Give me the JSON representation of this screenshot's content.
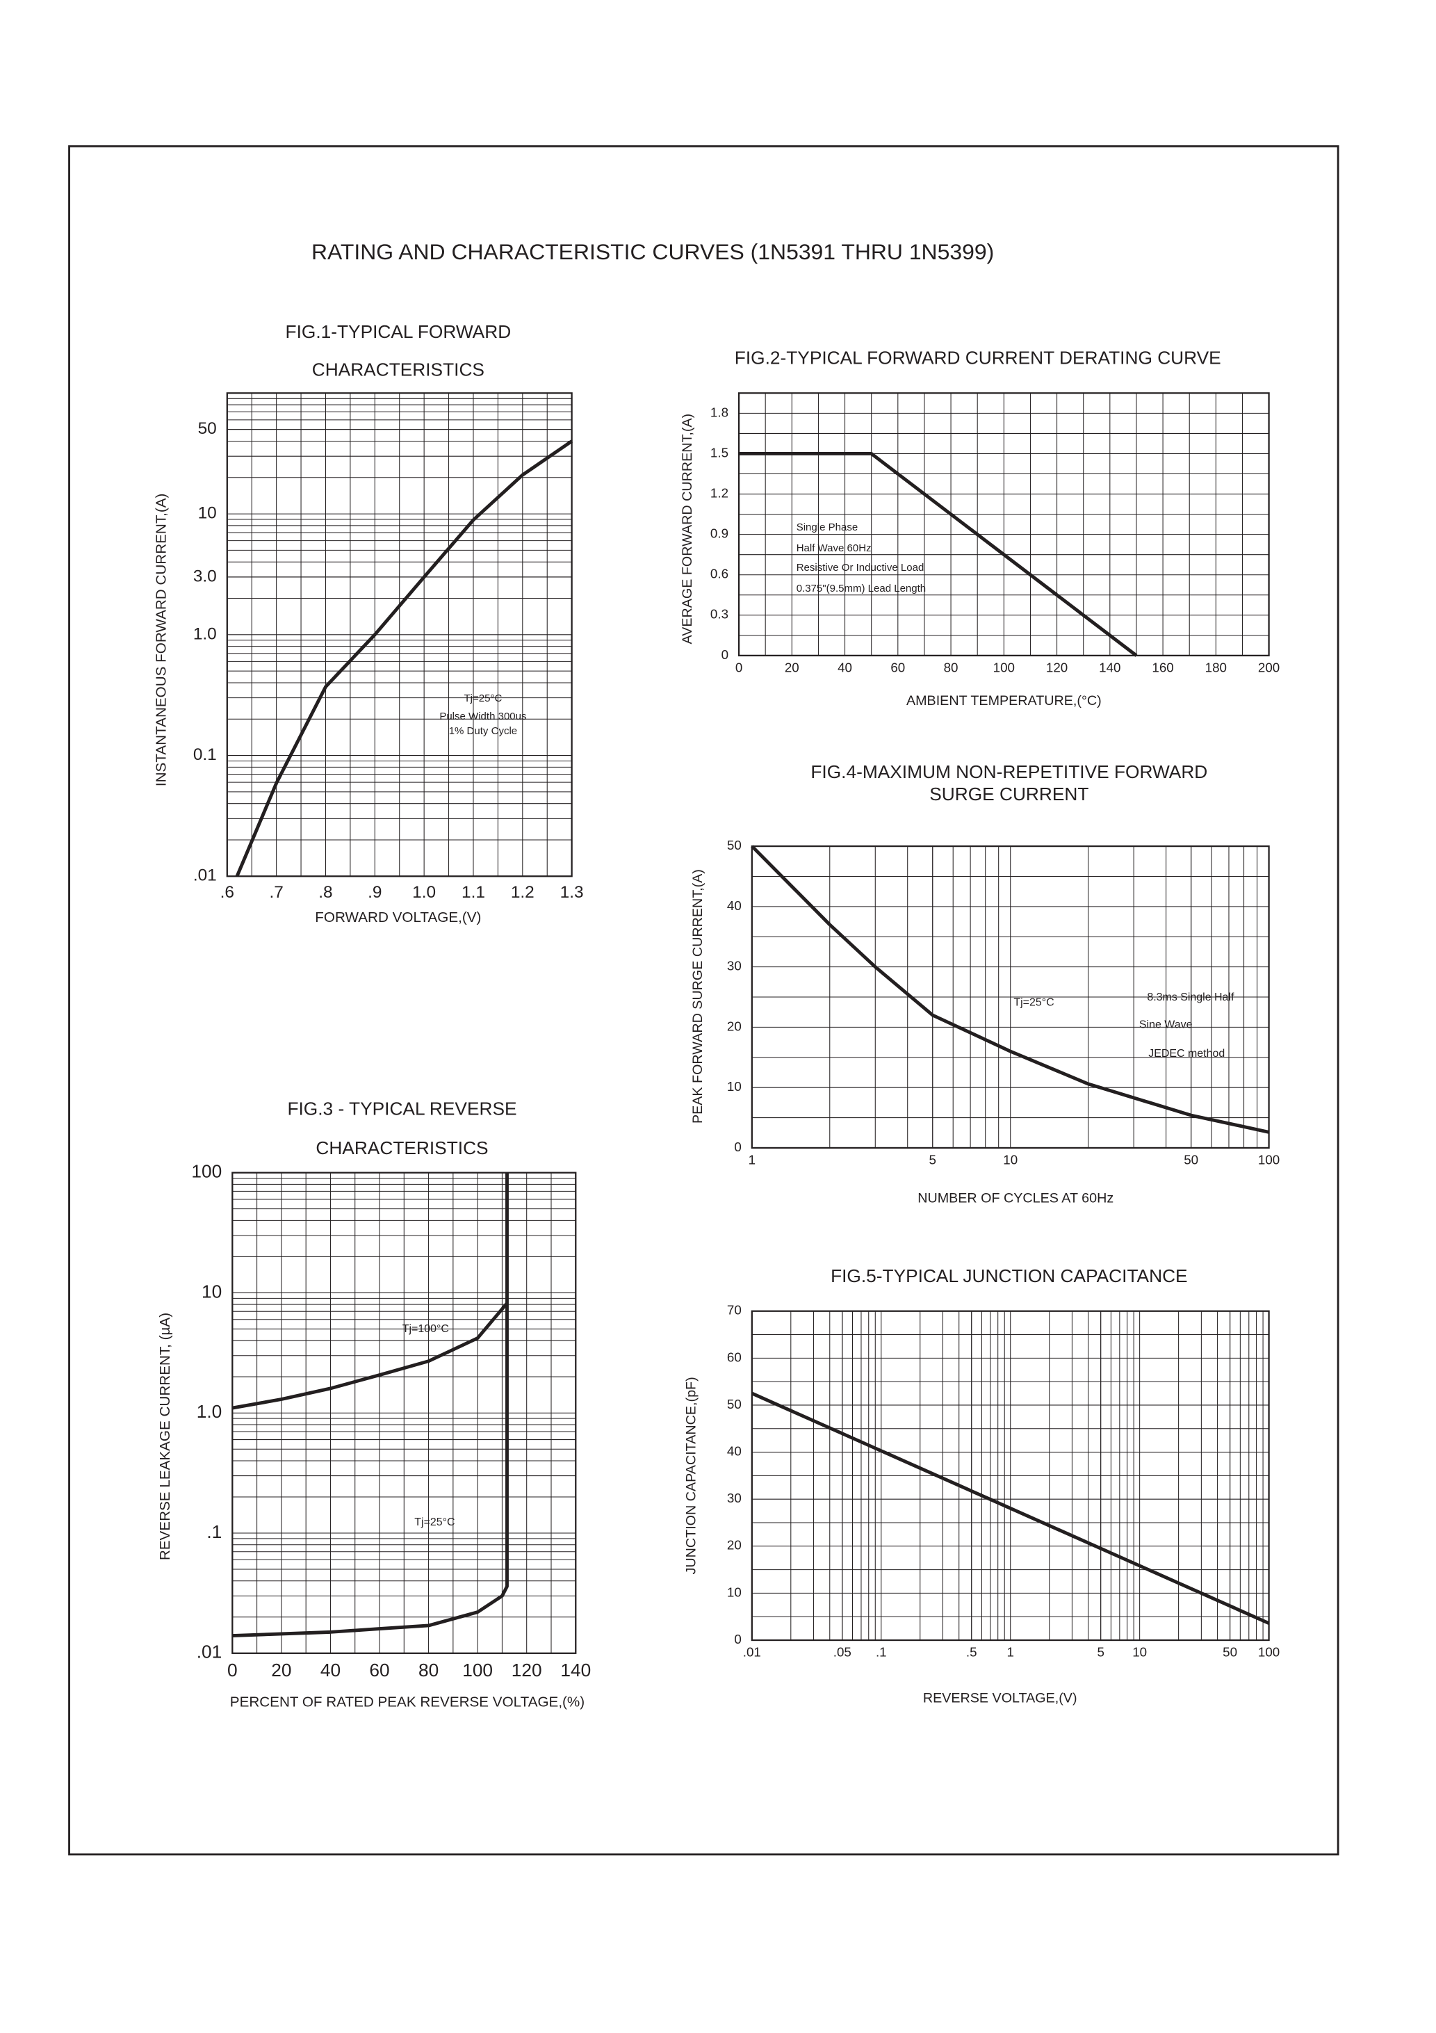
{
  "title": "RATING AND CHARACTERISTIC CURVES (1N5391 THRU 1N5399)",
  "chart_data": [
    {
      "type": "line",
      "title": [
        "FIG.1-TYPICAL FORWARD",
        "CHARACTERISTICS"
      ],
      "x_label": "FORWARD VOLTAGE,(V)",
      "y_label": "INSTANTANEOUS FORWARD CURRENT,(A)",
      "xscale": "linear",
      "yscale": "log",
      "grid": true,
      "xlim": [
        0.6,
        1.3
      ],
      "ylim": [
        0.01,
        100
      ],
      "xticks": [
        {
          "value": 0.6,
          "label": ".6"
        },
        {
          "value": 0.7,
          "label": ".7"
        },
        {
          "value": 0.8,
          "label": ".8"
        },
        {
          "value": 0.9,
          "label": ".9"
        },
        {
          "value": 1,
          "label": "1.0"
        },
        1.1,
        1.2,
        1.3
      ],
      "yticks": [
        {
          "value": 0.01,
          "label": ".01"
        },
        0.1,
        {
          "value": 1,
          "label": "1.0"
        },
        {
          "value": 3,
          "label": "3.0"
        },
        10,
        50
      ],
      "annotations": [
        "Tj=25°C",
        "Pulse Width 300us",
        "1% Duty Cycle"
      ],
      "series": [
        {
          "color": "#231f20",
          "x": [
            0.62,
            0.7,
            0.8,
            0.9,
            1.0,
            1.1,
            1.2,
            1.3
          ],
          "values": [
            0.01,
            0.059,
            0.37,
            1.0,
            3.0,
            8.9,
            21,
            40
          ]
        }
      ]
    },
    {
      "type": "line",
      "title": [
        "FIG.2-TYPICAL FORWARD CURRENT DERATING CURVE"
      ],
      "x_label": "AMBIENT TEMPERATURE,(°C)",
      "y_label": "AVERAGE FORWARD CURRENT,(A)",
      "xscale": "linear",
      "yscale": "linear",
      "grid": true,
      "xlim": [
        0,
        200
      ],
      "ylim": [
        0,
        1.95
      ],
      "xticks": [
        0,
        20,
        40,
        60,
        80,
        100,
        120,
        140,
        160,
        180,
        200
      ],
      "yticks": [
        0,
        0.3,
        0.6,
        0.9,
        1.2,
        1.5,
        1.8
      ],
      "annotations": [
        "Single Phase",
        "Half Wave 60Hz",
        "Resistive Or Inductive Load",
        "0.375\"(9.5mm) Lead Length"
      ],
      "series": [
        {
          "color": "#231f20",
          "x": [
            0,
            50,
            150
          ],
          "values": [
            1.5,
            1.5,
            0
          ]
        }
      ]
    },
    {
      "type": "line",
      "title": [
        "FIG.3 - TYPICAL REVERSE",
        "CHARACTERISTICS"
      ],
      "x_label": "PERCENT OF RATED PEAK REVERSE VOLTAGE,(%)",
      "y_label": "REVERSE LEAKAGE CURRENT, (µA)",
      "xscale": "linear",
      "yscale": "log",
      "grid": true,
      "xlim": [
        0,
        140
      ],
      "ylim": [
        0.01,
        100
      ],
      "xticks": [
        0,
        20,
        40,
        60,
        80,
        100,
        120,
        140
      ],
      "yticks": [
        {
          "value": 0.01,
          "label": ".01"
        },
        {
          "value": 0.1,
          "label": ".1"
        },
        {
          "value": 1,
          "label": "1.0"
        },
        10,
        100
      ],
      "series": [
        {
          "name": "Tj=100°C",
          "color": "#231f20",
          "x": [
            0,
            20,
            40,
            60,
            80,
            100,
            112
          ],
          "values": [
            1.1,
            1.3,
            1.6,
            2.07,
            2.7,
            4.2,
            8.2
          ]
        },
        {
          "name": "Tj=25°C",
          "color": "#231f20",
          "x": [
            0,
            40,
            60,
            80,
            100,
            110,
            112,
            112
          ],
          "values": [
            0.014,
            0.015,
            0.016,
            0.017,
            0.022,
            0.03,
            0.036,
            100
          ]
        }
      ]
    },
    {
      "type": "line",
      "title": [
        "FIG.4-MAXIMUM NON-REPETITIVE FORWARD",
        "SURGE CURRENT"
      ],
      "x_label": "NUMBER OF CYCLES AT 60Hz",
      "y_label": "PEAK FORWARD SURGE CURRENT,(A)",
      "xscale": "log",
      "yscale": "linear",
      "grid": true,
      "xlim": [
        1,
        100
      ],
      "ylim": [
        0,
        50
      ],
      "xticks": [
        1,
        5,
        10,
        50,
        100
      ],
      "yticks": [
        0,
        10,
        20,
        30,
        40,
        50
      ],
      "annotations": [
        "Tj=25°C",
        "8.3ms Single Half",
        "Sine Wave",
        "JEDEC method"
      ],
      "series": [
        {
          "color": "#231f20",
          "x": [
            1,
            2,
            3,
            5,
            10,
            20,
            50,
            100
          ],
          "values": [
            50,
            37,
            30,
            22,
            16,
            10.6,
            5.4,
            2.6
          ]
        }
      ]
    },
    {
      "type": "line",
      "title": [
        "FIG.5-TYPICAL JUNCTION CAPACITANCE"
      ],
      "x_label": "REVERSE VOLTAGE,(V)",
      "y_label": "JUNCTION CAPACITANCE,(pF)",
      "xscale": "log",
      "yscale": "linear",
      "grid": true,
      "xlim": [
        0.01,
        100
      ],
      "ylim": [
        0,
        70
      ],
      "xticks": [
        {
          "value": 0.01,
          "label": ".01"
        },
        {
          "value": 0.05,
          "label": ".05"
        },
        {
          "value": 0.1,
          "label": ".1"
        },
        {
          "value": 0.5,
          "label": ".5"
        },
        1,
        5,
        10,
        50,
        100
      ],
      "yticks": [
        0,
        10,
        20,
        30,
        40,
        50,
        60,
        70
      ],
      "series": [
        {
          "color": "#231f20",
          "x": [
            0.01,
            100
          ],
          "values": [
            52.5,
            3.6
          ]
        }
      ]
    }
  ]
}
